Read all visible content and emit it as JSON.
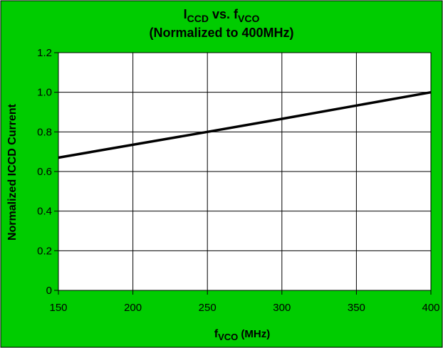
{
  "chart_data": {
    "type": "line",
    "title": {
      "line1_main": "I",
      "line1_main_sub": "CCD",
      "line1_mid": " vs. f",
      "line1_mid_sub": "VCO",
      "line2": "(Normalized to 400MHz)"
    },
    "xlabel": {
      "main": "f",
      "sub": "VCO",
      "rest": " (MHz)"
    },
    "ylabel": "Normalized ICCD Current",
    "xlim": [
      150,
      400
    ],
    "ylim": [
      0,
      1.2
    ],
    "x_ticks": [
      150,
      200,
      250,
      300,
      350,
      400
    ],
    "x_tick_labels": [
      "150",
      "200",
      "250",
      "300",
      "350",
      "400"
    ],
    "y_ticks": [
      0,
      0.2,
      0.4,
      0.6,
      0.8,
      1.0,
      1.2
    ],
    "y_tick_labels": [
      "0",
      "0.2",
      "0.4",
      "0.6",
      "0.8",
      "1.0",
      "1.2"
    ],
    "grid": true,
    "series": [
      {
        "x": [
          150,
          200,
          250,
          300,
          350,
          400
        ],
        "y": [
          0.67,
          0.735,
          0.8,
          0.866,
          0.933,
          1.0
        ]
      }
    ],
    "colors": {
      "background": "#00cc00",
      "plot_area": "#ffffff",
      "grid": "#000000",
      "line": "#000000"
    }
  }
}
